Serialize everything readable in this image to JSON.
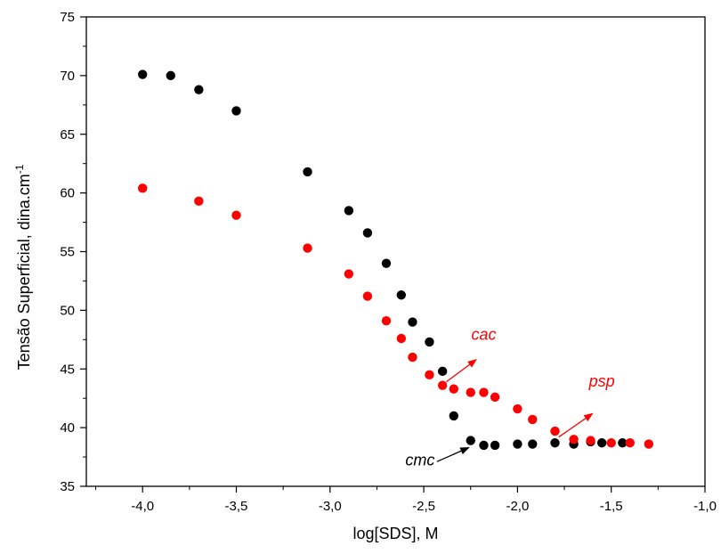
{
  "chart_data": {
    "type": "scatter",
    "title": "",
    "xlabel": "log[SDS], M",
    "ylabel": "Tensão Superficial,  dina.cm",
    "ylabel_superscript": "-1",
    "xlim": [
      -4.3,
      -1.0
    ],
    "ylim": [
      35,
      75
    ],
    "x_ticks": [
      "-4,0",
      "-3,5",
      "-3,0",
      "-2,5",
      "-2,0",
      "-1,5",
      "-1,0"
    ],
    "x_tick_values": [
      -4.0,
      -3.5,
      -3.0,
      -2.5,
      -2.0,
      -1.5,
      -1.0
    ],
    "y_ticks": [
      "35",
      "40",
      "45",
      "50",
      "55",
      "60",
      "65",
      "70",
      "75"
    ],
    "y_tick_values": [
      35,
      40,
      45,
      50,
      55,
      60,
      65,
      70,
      75
    ],
    "grid": false,
    "legend": "none",
    "series": [
      {
        "color": "#000000",
        "points": [
          [
            -4.0,
            70.1
          ],
          [
            -3.85,
            70.0
          ],
          [
            -3.7,
            68.8
          ],
          [
            -3.5,
            67.0
          ],
          [
            -3.12,
            61.8
          ],
          [
            -2.9,
            58.5
          ],
          [
            -2.8,
            56.6
          ],
          [
            -2.7,
            54.0
          ],
          [
            -2.62,
            51.3
          ],
          [
            -2.56,
            49.0
          ],
          [
            -2.47,
            47.3
          ],
          [
            -2.4,
            44.8
          ],
          [
            -2.34,
            41.0
          ],
          [
            -2.25,
            38.9
          ],
          [
            -2.18,
            38.5
          ],
          [
            -2.12,
            38.5
          ],
          [
            -2.0,
            38.6
          ],
          [
            -1.92,
            38.6
          ],
          [
            -1.8,
            38.7
          ],
          [
            -1.7,
            38.6
          ],
          [
            -1.61,
            38.8
          ],
          [
            -1.55,
            38.7
          ],
          [
            -1.44,
            38.7
          ]
        ]
      },
      {
        "color": "#ff0000",
        "points": [
          [
            -4.0,
            60.4
          ],
          [
            -3.7,
            59.3
          ],
          [
            -3.5,
            58.1
          ],
          [
            -3.12,
            55.3
          ],
          [
            -2.9,
            53.1
          ],
          [
            -2.8,
            51.2
          ],
          [
            -2.7,
            49.1
          ],
          [
            -2.62,
            47.6
          ],
          [
            -2.56,
            46.0
          ],
          [
            -2.47,
            44.5
          ],
          [
            -2.4,
            43.6
          ],
          [
            -2.34,
            43.3
          ],
          [
            -2.25,
            43.0
          ],
          [
            -2.18,
            43.0
          ],
          [
            -2.12,
            42.6
          ],
          [
            -2.0,
            41.6
          ],
          [
            -1.92,
            40.7
          ],
          [
            -1.8,
            39.7
          ],
          [
            -1.7,
            39.0
          ],
          [
            -1.61,
            38.9
          ],
          [
            -1.5,
            38.7
          ],
          [
            -1.4,
            38.7
          ],
          [
            -1.3,
            38.6
          ]
        ]
      }
    ],
    "annotations": [
      {
        "text": "cac",
        "color": "#ff0000",
        "x": -2.18,
        "y": 47.5,
        "arrow_from": [
          -2.38,
          43.9
        ],
        "arrow_to": [
          -2.22,
          45.8
        ]
      },
      {
        "text": "psp",
        "color": "#ff0000",
        "x": -1.55,
        "y": 43.5,
        "arrow_from": [
          -1.78,
          39.2
        ],
        "arrow_to": [
          -1.6,
          41.2
        ]
      },
      {
        "text": "cmc",
        "color": "#000000",
        "x": -2.52,
        "y": 36.8,
        "arrow_from": [
          -2.43,
          37.1
        ],
        "arrow_to": [
          -2.26,
          38.3
        ]
      }
    ]
  }
}
